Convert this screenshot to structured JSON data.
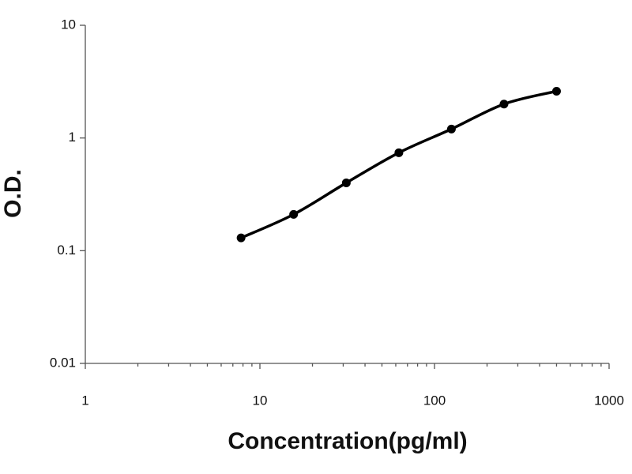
{
  "chart_data": {
    "type": "scatter",
    "x": [
      7.8,
      15.6,
      31.25,
      62.5,
      125,
      250,
      500
    ],
    "values": [
      0.13,
      0.21,
      0.4,
      0.74,
      1.2,
      2.0,
      2.6
    ],
    "color": "#000000",
    "x_label": "Concentration(pg/ml)",
    "y_label": "O.D.",
    "xlim": [
      1,
      1000
    ],
    "xticks": [
      1,
      10,
      100,
      1000
    ],
    "ylim": [
      0.01,
      10
    ],
    "yticks": [
      0.01,
      0.1,
      1,
      10
    ],
    "x_log": true,
    "y_log": true,
    "smooth_line": true
  }
}
